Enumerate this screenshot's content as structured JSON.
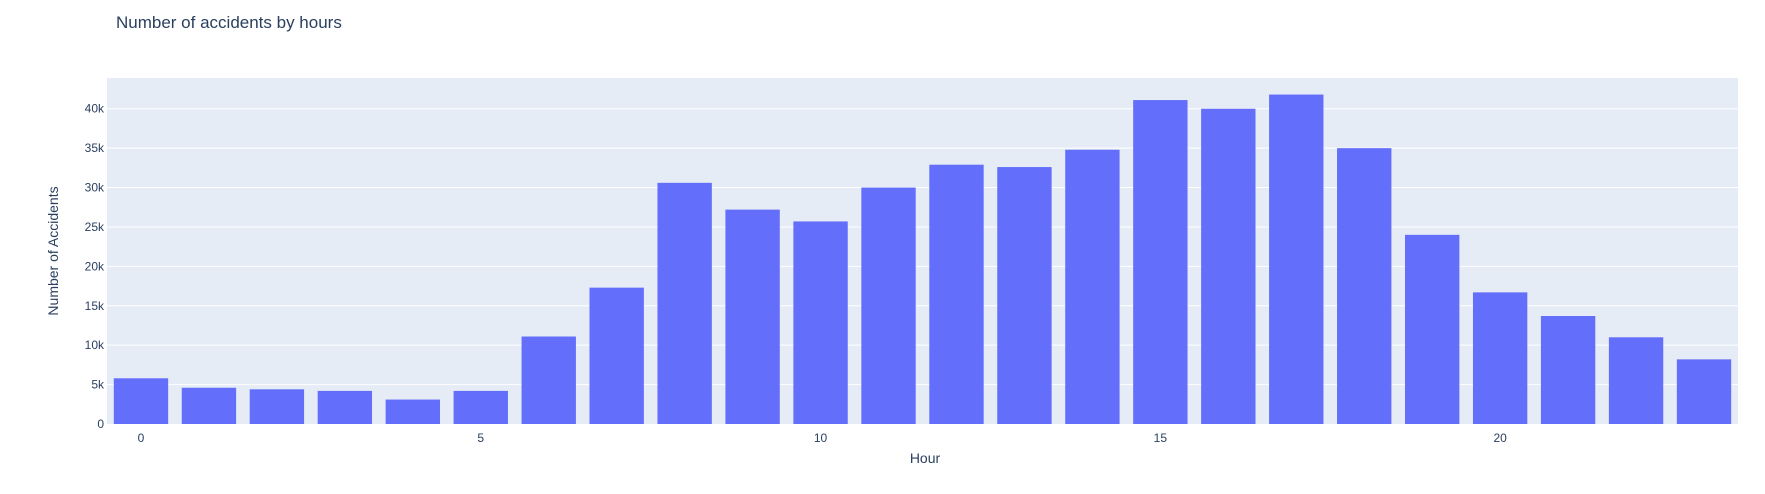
{
  "chart_data": {
    "type": "bar",
    "title": "Number of accidents by hours",
    "xlabel": "Hour",
    "ylabel": "Number of Accidents",
    "categories": [
      0,
      1,
      2,
      3,
      4,
      5,
      6,
      7,
      8,
      9,
      10,
      11,
      12,
      13,
      14,
      15,
      16,
      17,
      18,
      19,
      20,
      21,
      22,
      23
    ],
    "values": [
      5800,
      4600,
      4400,
      4200,
      3100,
      4200,
      11100,
      17300,
      30600,
      27200,
      25700,
      30000,
      32900,
      32600,
      34800,
      41100,
      40000,
      41800,
      35000,
      24000,
      16700,
      13700,
      11000,
      8200
    ],
    "ylim": [
      0,
      43900
    ],
    "xlim": [
      -0.5,
      23.5
    ],
    "x_ticks": [
      0,
      5,
      10,
      15,
      20
    ],
    "x_tick_labels": [
      "0",
      "5",
      "10",
      "15",
      "20"
    ],
    "y_ticks": [
      0,
      5000,
      10000,
      15000,
      20000,
      25000,
      30000,
      35000,
      40000
    ],
    "y_tick_labels": [
      "0",
      "5k",
      "10k",
      "15k",
      "20k",
      "25k",
      "30k",
      "35k",
      "40k"
    ],
    "grid": true,
    "bar_color": "#636efa",
    "plot_background": "#e5ecf6",
    "grid_color": "#ffffff",
    "text_color": "#2a3f5f"
  }
}
